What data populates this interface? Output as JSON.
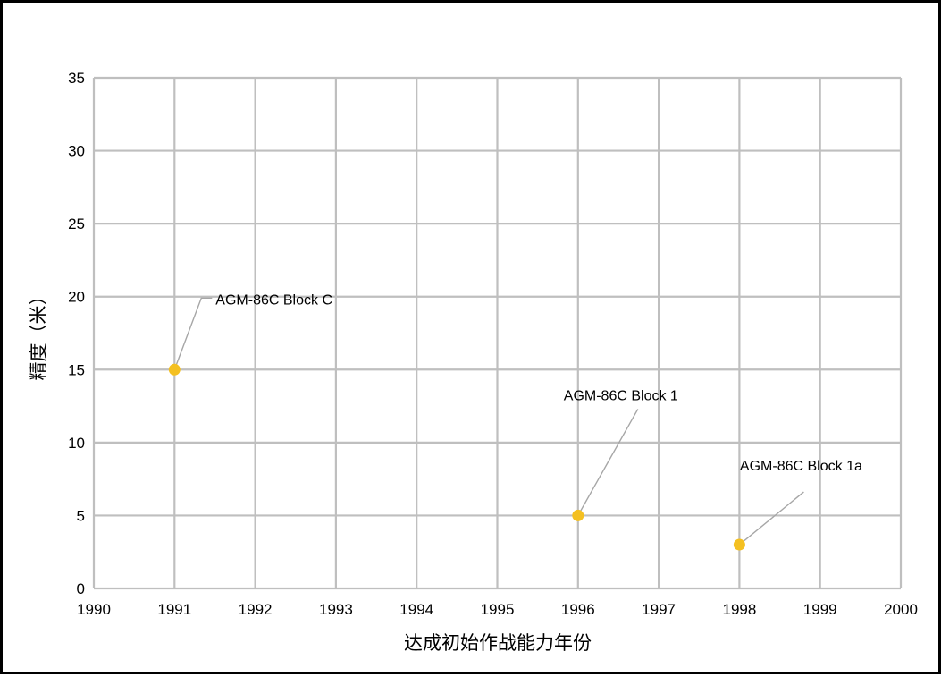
{
  "chart_data": {
    "type": "scatter",
    "title": "",
    "xlabel": "达成初始作战能力年份",
    "ylabel": "精度（米）",
    "xlim": [
      1990,
      2000
    ],
    "ylim": [
      0,
      35
    ],
    "x_ticks": [
      "1990",
      "1991",
      "1992",
      "1993",
      "1994",
      "1995",
      "1996",
      "1997",
      "1998",
      "1999",
      "2000"
    ],
    "y_ticks": [
      "0",
      "5",
      "10",
      "15",
      "20",
      "25",
      "30",
      "35"
    ],
    "grid": true,
    "legend": "none",
    "marker_color": "#F4C021",
    "points": [
      {
        "x": 1991,
        "y": 15,
        "label": "AGM-86C Block C"
      },
      {
        "x": 1996,
        "y": 5,
        "label": "AGM-86C Block 1"
      },
      {
        "x": 1998,
        "y": 3,
        "label": "AGM-86C Block 1a"
      }
    ]
  }
}
